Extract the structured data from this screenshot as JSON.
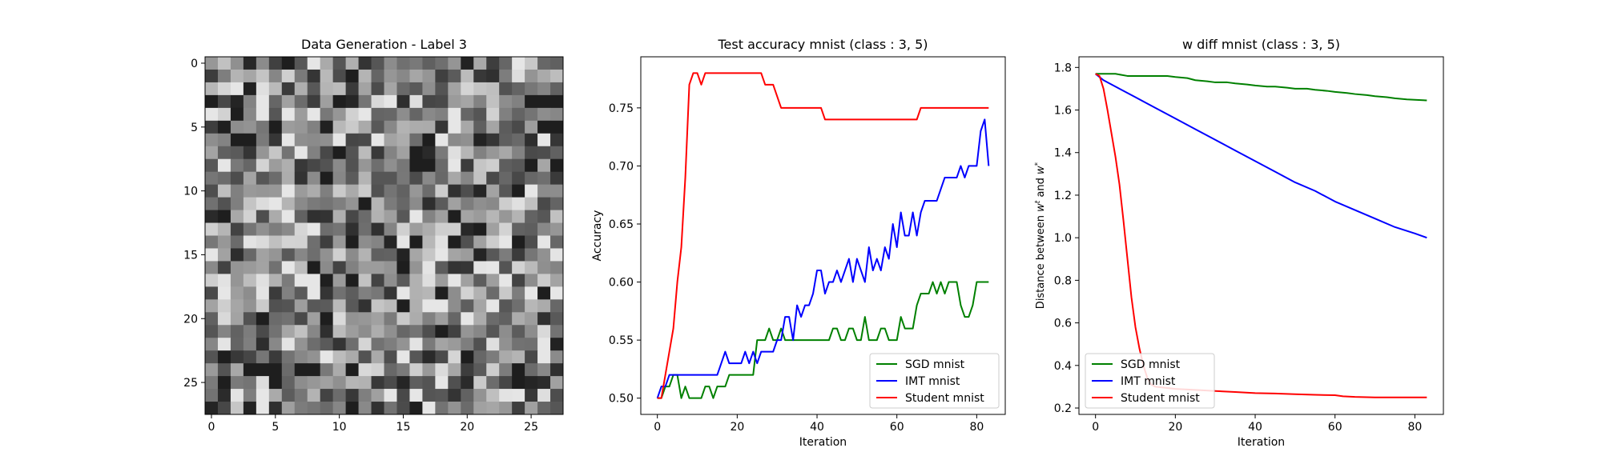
{
  "chart_data": [
    {
      "type": "heatmap",
      "title": "Data Generation - Label 3",
      "colormap": "gray",
      "xlim": [
        -0.5,
        27.5
      ],
      "ylim": [
        27.5,
        -0.5
      ],
      "xticks": [
        0,
        5,
        10,
        15,
        20,
        25
      ],
      "yticks": [
        0,
        5,
        10,
        15,
        20,
        25
      ],
      "shape": [
        28,
        28
      ],
      "pixel_values": "random grayscale noise image (28x28), values not labeled"
    },
    {
      "type": "line",
      "title": "Test accuracy mnist (class : 3, 5)",
      "xlabel": "Iteration",
      "ylabel": "Accuracy",
      "xlim": [
        -4.15,
        87.15
      ],
      "ylim": [
        0.486,
        0.794
      ],
      "xticks": [
        0,
        20,
        40,
        60,
        80
      ],
      "yticks": [
        0.5,
        0.55,
        0.6,
        0.65,
        0.7,
        0.75
      ],
      "ytick_labels": [
        "0.50",
        "0.55",
        "0.60",
        "0.65",
        "0.70",
        "0.75"
      ],
      "legend_position": "lower-right",
      "series": [
        {
          "name": "SGD mnist",
          "color": "#008000",
          "x": [
            0,
            1,
            2,
            3,
            4,
            5,
            6,
            7,
            8,
            9,
            10,
            11,
            12,
            13,
            14,
            15,
            16,
            17,
            18,
            19,
            20,
            21,
            22,
            23,
            24,
            25,
            26,
            27,
            28,
            29,
            30,
            31,
            32,
            33,
            34,
            35,
            36,
            37,
            38,
            39,
            40,
            41,
            42,
            43,
            44,
            45,
            46,
            47,
            48,
            49,
            50,
            51,
            52,
            53,
            54,
            55,
            56,
            57,
            58,
            59,
            60,
            61,
            62,
            63,
            64,
            65,
            66,
            67,
            68,
            69,
            70,
            71,
            72,
            73,
            74,
            75,
            76,
            77,
            78,
            79,
            80,
            81,
            82,
            83
          ],
          "values": [
            0.5,
            0.5,
            0.51,
            0.51,
            0.52,
            0.52,
            0.5,
            0.51,
            0.5,
            0.5,
            0.5,
            0.5,
            0.51,
            0.51,
            0.5,
            0.51,
            0.51,
            0.51,
            0.52,
            0.52,
            0.52,
            0.52,
            0.52,
            0.52,
            0.52,
            0.55,
            0.55,
            0.55,
            0.56,
            0.55,
            0.55,
            0.56,
            0.55,
            0.55,
            0.55,
            0.55,
            0.55,
            0.55,
            0.55,
            0.55,
            0.55,
            0.55,
            0.55,
            0.55,
            0.56,
            0.56,
            0.55,
            0.55,
            0.56,
            0.56,
            0.55,
            0.55,
            0.57,
            0.55,
            0.55,
            0.55,
            0.56,
            0.56,
            0.55,
            0.55,
            0.55,
            0.57,
            0.56,
            0.56,
            0.56,
            0.58,
            0.59,
            0.59,
            0.59,
            0.6,
            0.59,
            0.6,
            0.59,
            0.6,
            0.6,
            0.6,
            0.58,
            0.57,
            0.57,
            0.58,
            0.6,
            0.6,
            0.6,
            0.6
          ]
        },
        {
          "name": "IMT mnist",
          "color": "#0000ff",
          "x": [
            0,
            1,
            2,
            3,
            4,
            5,
            6,
            7,
            8,
            9,
            10,
            11,
            12,
            13,
            14,
            15,
            16,
            17,
            18,
            19,
            20,
            21,
            22,
            23,
            24,
            25,
            26,
            27,
            28,
            29,
            30,
            31,
            32,
            33,
            34,
            35,
            36,
            37,
            38,
            39,
            40,
            41,
            42,
            43,
            44,
            45,
            46,
            47,
            48,
            49,
            50,
            51,
            52,
            53,
            54,
            55,
            56,
            57,
            58,
            59,
            60,
            61,
            62,
            63,
            64,
            65,
            66,
            67,
            68,
            69,
            70,
            71,
            72,
            73,
            74,
            75,
            76,
            77,
            78,
            79,
            80,
            81,
            82,
            83
          ],
          "values": [
            0.5,
            0.51,
            0.51,
            0.52,
            0.52,
            0.52,
            0.52,
            0.52,
            0.52,
            0.52,
            0.52,
            0.52,
            0.52,
            0.52,
            0.52,
            0.52,
            0.53,
            0.54,
            0.53,
            0.53,
            0.53,
            0.53,
            0.54,
            0.53,
            0.54,
            0.53,
            0.54,
            0.54,
            0.54,
            0.54,
            0.55,
            0.55,
            0.57,
            0.57,
            0.55,
            0.58,
            0.57,
            0.58,
            0.58,
            0.59,
            0.61,
            0.61,
            0.59,
            0.6,
            0.6,
            0.61,
            0.6,
            0.61,
            0.62,
            0.6,
            0.62,
            0.61,
            0.6,
            0.63,
            0.61,
            0.62,
            0.61,
            0.63,
            0.62,
            0.65,
            0.63,
            0.66,
            0.64,
            0.64,
            0.66,
            0.64,
            0.66,
            0.67,
            0.67,
            0.67,
            0.67,
            0.68,
            0.69,
            0.69,
            0.69,
            0.69,
            0.7,
            0.69,
            0.7,
            0.7,
            0.7,
            0.73,
            0.74,
            0.7
          ]
        },
        {
          "name": "Student mnist",
          "color": "#ff0000",
          "x": [
            0,
            1,
            2,
            3,
            4,
            5,
            6,
            7,
            8,
            9,
            10,
            11,
            12,
            13,
            14,
            15,
            16,
            17,
            18,
            19,
            20,
            21,
            22,
            23,
            24,
            25,
            26,
            27,
            28,
            29,
            30,
            31,
            32,
            33,
            34,
            35,
            36,
            37,
            38,
            39,
            40,
            41,
            42,
            43,
            44,
            45,
            46,
            47,
            48,
            49,
            50,
            51,
            52,
            53,
            54,
            55,
            56,
            57,
            58,
            59,
            60,
            61,
            62,
            63,
            64,
            65,
            66,
            67,
            68,
            69,
            70,
            71,
            72,
            73,
            74,
            75,
            76,
            77,
            78,
            79,
            80,
            81,
            82,
            83
          ],
          "values": [
            0.5,
            0.5,
            0.52,
            0.54,
            0.56,
            0.6,
            0.63,
            0.69,
            0.77,
            0.78,
            0.78,
            0.77,
            0.78,
            0.78,
            0.78,
            0.78,
            0.78,
            0.78,
            0.78,
            0.78,
            0.78,
            0.78,
            0.78,
            0.78,
            0.78,
            0.78,
            0.78,
            0.77,
            0.77,
            0.77,
            0.76,
            0.75,
            0.75,
            0.75,
            0.75,
            0.75,
            0.75,
            0.75,
            0.75,
            0.75,
            0.75,
            0.75,
            0.74,
            0.74,
            0.74,
            0.74,
            0.74,
            0.74,
            0.74,
            0.74,
            0.74,
            0.74,
            0.74,
            0.74,
            0.74,
            0.74,
            0.74,
            0.74,
            0.74,
            0.74,
            0.74,
            0.74,
            0.74,
            0.74,
            0.74,
            0.74,
            0.75,
            0.75,
            0.75,
            0.75,
            0.75,
            0.75,
            0.75,
            0.75,
            0.75,
            0.75,
            0.75,
            0.75,
            0.75,
            0.75,
            0.75,
            0.75,
            0.75,
            0.75
          ]
        }
      ]
    },
    {
      "type": "line",
      "title": "w diff mnist (class : 3, 5)",
      "xlabel": "Iteration",
      "ylabel": "Distance between w^t and w^*",
      "xlim": [
        -4.15,
        87.15
      ],
      "ylim": [
        0.17,
        1.85
      ],
      "xticks": [
        0,
        20,
        40,
        60,
        80
      ],
      "yticks": [
        0.2,
        0.4,
        0.6,
        0.8,
        1.0,
        1.2,
        1.4,
        1.6,
        1.8
      ],
      "ytick_labels": [
        "0.2",
        "0.4",
        "0.6",
        "0.8",
        "1.0",
        "1.2",
        "1.4",
        "1.6",
        "1.8"
      ],
      "legend_position": "lower-left",
      "series": [
        {
          "name": "SGD mnist",
          "color": "#008000",
          "x": [
            0,
            3,
            5,
            8,
            10,
            13,
            15,
            18,
            20,
            23,
            25,
            28,
            30,
            33,
            35,
            38,
            40,
            43,
            45,
            48,
            50,
            53,
            55,
            58,
            60,
            63,
            65,
            68,
            70,
            73,
            75,
            78,
            80,
            83
          ],
          "values": [
            1.77,
            1.77,
            1.77,
            1.76,
            1.76,
            1.76,
            1.76,
            1.76,
            1.755,
            1.75,
            1.74,
            1.735,
            1.73,
            1.73,
            1.725,
            1.72,
            1.715,
            1.71,
            1.71,
            1.705,
            1.7,
            1.7,
            1.695,
            1.69,
            1.685,
            1.68,
            1.675,
            1.67,
            1.665,
            1.66,
            1.655,
            1.65,
            1.648,
            1.645
          ]
        },
        {
          "name": "IMT mnist",
          "color": "#0000ff",
          "x": [
            0,
            2,
            5,
            10,
            15,
            20,
            25,
            30,
            35,
            40,
            45,
            50,
            55,
            60,
            65,
            70,
            75,
            80,
            83
          ],
          "values": [
            1.77,
            1.74,
            1.71,
            1.66,
            1.61,
            1.56,
            1.51,
            1.46,
            1.41,
            1.36,
            1.31,
            1.26,
            1.22,
            1.17,
            1.13,
            1.09,
            1.05,
            1.02,
            1.0
          ]
        },
        {
          "name": "Student mnist",
          "color": "#ff0000",
          "x": [
            0,
            1,
            2,
            3,
            4,
            5,
            6,
            7,
            8,
            9,
            10,
            11,
            12,
            13,
            14,
            15,
            20,
            25,
            30,
            35,
            40,
            45,
            50,
            55,
            60,
            62,
            65,
            70,
            75,
            80,
            83
          ],
          "values": [
            1.77,
            1.76,
            1.7,
            1.6,
            1.49,
            1.38,
            1.25,
            1.08,
            0.9,
            0.72,
            0.58,
            0.48,
            0.4,
            0.34,
            0.31,
            0.3,
            0.29,
            0.285,
            0.28,
            0.275,
            0.27,
            0.268,
            0.265,
            0.262,
            0.26,
            0.255,
            0.252,
            0.25,
            0.25,
            0.25,
            0.25
          ]
        }
      ]
    }
  ]
}
